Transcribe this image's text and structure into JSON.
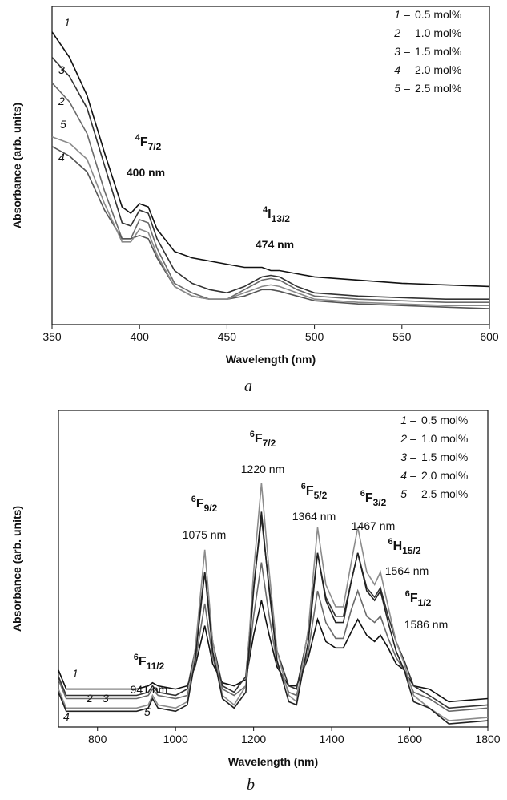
{
  "chart_data": [
    {
      "type": "line",
      "caption": "a",
      "xlabel": "Wavelength (nm)",
      "ylabel": "Absorbance (arb. units)",
      "legend": "upper right",
      "legend_separator": "–",
      "x": [
        350,
        360,
        370,
        380,
        390,
        395,
        400,
        405,
        410,
        420,
        430,
        440,
        450,
        460,
        470,
        475,
        480,
        490,
        500,
        525,
        550,
        575,
        600
      ],
      "xlim": [
        350,
        600
      ],
      "xticks": [
        350,
        400,
        450,
        500,
        550,
        600
      ],
      "ylim": [
        0,
        1
      ],
      "series": [
        {
          "label": "1",
          "name": "0.5 mol%",
          "color": "#111111",
          "values": [
            0.92,
            0.84,
            0.72,
            0.54,
            0.37,
            0.35,
            0.38,
            0.37,
            0.3,
            0.23,
            0.21,
            0.2,
            0.19,
            0.18,
            0.18,
            0.17,
            0.17,
            0.16,
            0.15,
            0.14,
            0.13,
            0.125,
            0.12
          ]
        },
        {
          "label": "2",
          "name": "1.0 mol%",
          "color": "#6a6a6a",
          "values": [
            0.76,
            0.7,
            0.6,
            0.42,
            0.27,
            0.27,
            0.33,
            0.32,
            0.24,
            0.13,
            0.1,
            0.08,
            0.08,
            0.11,
            0.14,
            0.145,
            0.14,
            0.11,
            0.09,
            0.08,
            0.075,
            0.07,
            0.07
          ]
        },
        {
          "label": "3",
          "name": "1.5 mol%",
          "color": "#333333",
          "values": [
            0.84,
            0.78,
            0.68,
            0.5,
            0.32,
            0.31,
            0.36,
            0.35,
            0.27,
            0.17,
            0.13,
            0.11,
            0.1,
            0.12,
            0.15,
            0.155,
            0.15,
            0.12,
            0.1,
            0.09,
            0.085,
            0.08,
            0.08
          ]
        },
        {
          "label": "4",
          "name": "2.0 mol%",
          "color": "#555555",
          "values": [
            0.56,
            0.53,
            0.48,
            0.36,
            0.27,
            0.27,
            0.28,
            0.27,
            0.21,
            0.12,
            0.09,
            0.08,
            0.08,
            0.09,
            0.11,
            0.11,
            0.105,
            0.09,
            0.075,
            0.065,
            0.06,
            0.055,
            0.05
          ]
        },
        {
          "label": "5",
          "name": "2.5 mol%",
          "color": "#8a8a8a",
          "values": [
            0.59,
            0.57,
            0.52,
            0.38,
            0.26,
            0.26,
            0.3,
            0.29,
            0.22,
            0.12,
            0.09,
            0.08,
            0.08,
            0.1,
            0.12,
            0.125,
            0.12,
            0.1,
            0.08,
            0.07,
            0.065,
            0.06,
            0.06
          ]
        }
      ],
      "annotations": [
        {
          "sup": "4",
          "term": "F",
          "sub": "7/2",
          "label": "400 nm"
        },
        {
          "sup": "4",
          "term": "I",
          "sub": "13/2",
          "label": "474 nm"
        }
      ]
    },
    {
      "type": "line",
      "caption": "b",
      "xlabel": "Wavelength (nm)",
      "ylabel": "Absorbance (arb. units)",
      "legend": "upper right",
      "legend_separator": "–",
      "x": [
        700,
        720,
        800,
        900,
        930,
        941,
        955,
        1000,
        1030,
        1050,
        1075,
        1095,
        1120,
        1150,
        1180,
        1200,
        1220,
        1240,
        1260,
        1290,
        1310,
        1340,
        1364,
        1385,
        1410,
        1430,
        1450,
        1467,
        1490,
        1510,
        1525,
        1545,
        1565,
        1586,
        1610,
        1650,
        1700,
        1750,
        1800
      ],
      "xlim": [
        700,
        1800
      ],
      "xticks": [
        800,
        1000,
        1200,
        1400,
        1600,
        1800
      ],
      "ylim": [
        0,
        1
      ],
      "series": [
        {
          "label": "1",
          "name": "0.5 mol%",
          "color": "#111111",
          "values": [
            0.18,
            0.12,
            0.12,
            0.12,
            0.13,
            0.14,
            0.13,
            0.12,
            0.13,
            0.19,
            0.32,
            0.2,
            0.14,
            0.13,
            0.15,
            0.29,
            0.4,
            0.29,
            0.19,
            0.13,
            0.13,
            0.22,
            0.34,
            0.27,
            0.25,
            0.25,
            0.3,
            0.34,
            0.29,
            0.27,
            0.29,
            0.25,
            0.2,
            0.18,
            0.13,
            0.12,
            0.08,
            0.085,
            0.09
          ]
        },
        {
          "label": "2",
          "name": "1.0 mol%",
          "color": "#6a6a6a",
          "values": [
            0.15,
            0.09,
            0.09,
            0.09,
            0.1,
            0.12,
            0.1,
            0.09,
            0.1,
            0.2,
            0.39,
            0.22,
            0.12,
            0.1,
            0.13,
            0.35,
            0.52,
            0.35,
            0.2,
            0.11,
            0.1,
            0.24,
            0.43,
            0.33,
            0.28,
            0.28,
            0.37,
            0.43,
            0.35,
            0.33,
            0.35,
            0.28,
            0.22,
            0.18,
            0.11,
            0.09,
            0.05,
            0.055,
            0.06
          ]
        },
        {
          "label": "3",
          "name": "1.5 mol%",
          "color": "#333333",
          "values": [
            0.16,
            0.1,
            0.1,
            0.1,
            0.11,
            0.13,
            0.11,
            0.1,
            0.12,
            0.24,
            0.49,
            0.27,
            0.13,
            0.11,
            0.16,
            0.44,
            0.66,
            0.44,
            0.24,
            0.13,
            0.12,
            0.3,
            0.55,
            0.41,
            0.35,
            0.35,
            0.46,
            0.55,
            0.44,
            0.41,
            0.44,
            0.35,
            0.27,
            0.21,
            0.13,
            0.1,
            0.06,
            0.065,
            0.07
          ]
        },
        {
          "label": "4",
          "name": "2.0 mol%",
          "color": "#8c8c8c",
          "values": [
            0.12,
            0.06,
            0.06,
            0.06,
            0.07,
            0.1,
            0.07,
            0.06,
            0.08,
            0.24,
            0.56,
            0.27,
            0.1,
            0.07,
            0.13,
            0.49,
            0.77,
            0.49,
            0.24,
            0.1,
            0.08,
            0.31,
            0.63,
            0.45,
            0.38,
            0.38,
            0.52,
            0.63,
            0.49,
            0.45,
            0.49,
            0.38,
            0.27,
            0.2,
            0.1,
            0.06,
            0.02,
            0.025,
            0.03
          ]
        },
        {
          "label": "5",
          "name": "2.5 mol%",
          "color": "#222222",
          "values": [
            0.11,
            0.05,
            0.05,
            0.05,
            0.06,
            0.09,
            0.06,
            0.05,
            0.07,
            0.21,
            0.49,
            0.24,
            0.09,
            0.06,
            0.11,
            0.43,
            0.68,
            0.43,
            0.21,
            0.08,
            0.07,
            0.27,
            0.55,
            0.4,
            0.33,
            0.33,
            0.46,
            0.55,
            0.43,
            0.4,
            0.43,
            0.33,
            0.24,
            0.18,
            0.08,
            0.06,
            0.01,
            0.015,
            0.02
          ]
        }
      ],
      "annotations": [
        {
          "sup": "6",
          "term": "F",
          "sub": "11/2",
          "label": "941 nm"
        },
        {
          "sup": "6",
          "term": "F",
          "sub": "9/2",
          "label": "1075 nm"
        },
        {
          "sup": "6",
          "term": "F",
          "sub": "7/2",
          "label": "1220 nm"
        },
        {
          "sup": "6",
          "term": "F",
          "sub": "5/2",
          "label": "1364 nm"
        },
        {
          "sup": "6",
          "term": "F",
          "sub": "3/2",
          "label": "1467 nm"
        },
        {
          "sup": "6",
          "term": "H",
          "sub": "15/2",
          "label": "1564 nm"
        },
        {
          "sup": "6",
          "term": "F",
          "sub": "1/2",
          "label": "1586 nm"
        }
      ]
    }
  ]
}
